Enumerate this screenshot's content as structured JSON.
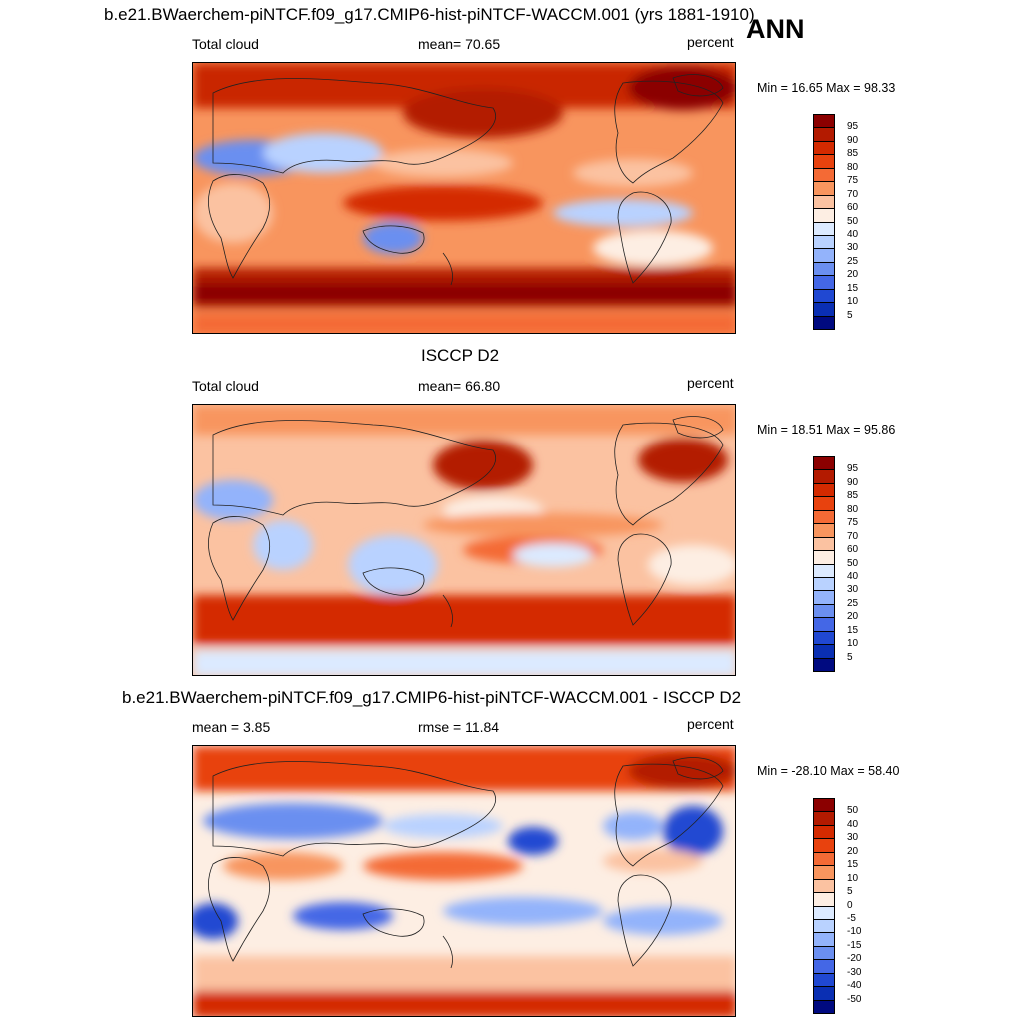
{
  "header": {
    "ann_label": "ANN"
  },
  "panels": [
    {
      "title": "b.e21.BWaerchem-piNTCF.f09_g17.CMIP6-hist-piNTCF-WACCM.001 (yrs 1881-1910)",
      "left_label": "Total cloud",
      "center_label": "mean=  70.65",
      "units": "percent",
      "minmax": "Min =  16.65 Max =  98.33",
      "legend": {
        "labels": [
          "95",
          "90",
          "85",
          "80",
          "75",
          "70",
          "60",
          "50",
          "40",
          "30",
          "25",
          "20",
          "15",
          "10",
          "5"
        ],
        "colors": [
          "#8b0000",
          "#b31a00",
          "#d42a00",
          "#e8420e",
          "#f46a35",
          "#f8955e",
          "#fbc2a1",
          "#fdeee3",
          "#dceaff",
          "#b9d2ff",
          "#93b3fb",
          "#6b8ff0",
          "#4467e6",
          "#2048d2",
          "#0a2fb3",
          "#000a80"
        ]
      }
    },
    {
      "title": "ISCCP D2",
      "left_label": "Total cloud",
      "center_label": "mean=  66.80",
      "units": "percent",
      "minmax": "Min =  18.51 Max =  95.86",
      "legend": {
        "labels": [
          "95",
          "90",
          "85",
          "80",
          "75",
          "70",
          "60",
          "50",
          "40",
          "30",
          "25",
          "20",
          "15",
          "10",
          "5"
        ],
        "colors": [
          "#8b0000",
          "#b31a00",
          "#d42a00",
          "#e8420e",
          "#f46a35",
          "#f8955e",
          "#fbc2a1",
          "#fdeee3",
          "#dceaff",
          "#b9d2ff",
          "#93b3fb",
          "#6b8ff0",
          "#4467e6",
          "#2048d2",
          "#0a2fb3",
          "#000a80"
        ]
      }
    },
    {
      "title": "b.e21.BWaerchem-piNTCF.f09_g17.CMIP6-hist-piNTCF-WACCM.001 - ISCCP D2",
      "left_label": "mean =   3.85",
      "center_label": "rmse =  11.84",
      "units": "percent",
      "minmax": "Min = -28.10 Max =  58.40",
      "legend": {
        "labels": [
          "50",
          "40",
          "30",
          "20",
          "15",
          "10",
          "5",
          "0",
          "-5",
          "-10",
          "-15",
          "-20",
          "-30",
          "-40",
          "-50"
        ],
        "colors": [
          "#8b0000",
          "#b31a00",
          "#d42a00",
          "#e8420e",
          "#f46a35",
          "#f8955e",
          "#fbc2a1",
          "#fdeee3",
          "#dceaff",
          "#b9d2ff",
          "#93b3fb",
          "#6b8ff0",
          "#4467e6",
          "#2048d2",
          "#0a2fb3",
          "#000a80"
        ]
      }
    }
  ]
}
